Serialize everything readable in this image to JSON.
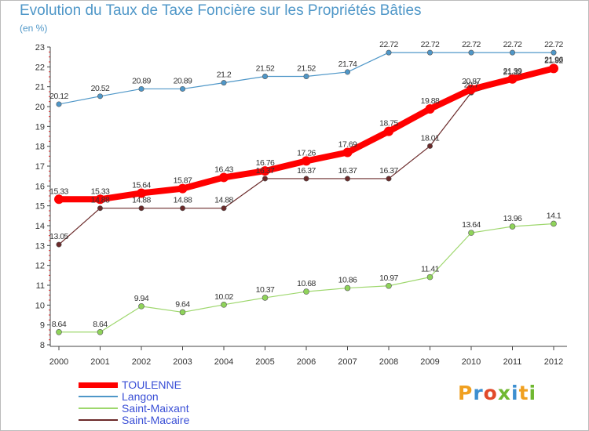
{
  "header": {
    "title": "Evolution du Taux de Taxe Foncière sur les Propriétés Bâties",
    "subtitle": "(en %)"
  },
  "logo": {
    "text": "Proxiti"
  },
  "chart_data": {
    "type": "line",
    "title": "Evolution du Taux de Taxe Foncière sur les Propriétés Bâties",
    "subtitle": "(en %)",
    "xlabel": "",
    "ylabel": "(en %)",
    "ylim": [
      8,
      23
    ],
    "grid": false,
    "legend": "bottom-left",
    "x": [
      "2000",
      "2001",
      "2002",
      "2003",
      "2004",
      "2005",
      "2006",
      "2007",
      "2008",
      "2009",
      "2010",
      "2011",
      "2012"
    ],
    "yticks": [
      "8",
      "9",
      "10",
      "11",
      "12",
      "13",
      "14",
      "15",
      "16",
      "17",
      "18",
      "19",
      "20",
      "21",
      "22",
      "23"
    ],
    "series": [
      {
        "name": "TOULENNE",
        "color": "#ff0000",
        "values": [
          15.33,
          15.33,
          15.64,
          15.87,
          16.43,
          16.76,
          17.26,
          17.69,
          18.75,
          19.88,
          20.87,
          21.39,
          21.92
        ],
        "labels": [
          "15.33",
          "15.33",
          "15.64",
          "15.87",
          "16.43",
          "16.76",
          "17.26",
          "17.69",
          "18.75",
          "19.88",
          "20.87",
          "21.39",
          "21.92"
        ]
      },
      {
        "name": "Langon",
        "color": "#4f97c8",
        "values": [
          20.12,
          20.52,
          20.89,
          20.89,
          21.2,
          21.52,
          21.52,
          21.74,
          22.72,
          22.72,
          22.72,
          22.72,
          22.72
        ],
        "labels": [
          "20.12",
          "20.52",
          "20.89",
          "20.89",
          "21.2",
          "21.52",
          "21.52",
          "21.74",
          "22.72",
          "22.72",
          "22.72",
          "22.72",
          "22.72"
        ]
      },
      {
        "name": "Saint-Maixant",
        "color": "#9ed76d",
        "values": [
          8.64,
          8.64,
          9.94,
          9.64,
          10.02,
          10.37,
          10.68,
          10.86,
          10.97,
          11.41,
          13.64,
          13.96,
          14.1
        ],
        "labels": [
          "8.64",
          "8.64",
          "9.94",
          "9.64",
          "10.02",
          "10.37",
          "10.68",
          "10.86",
          "10.97",
          "11.41",
          "13.64",
          "13.96",
          "14.1"
        ]
      },
      {
        "name": "Saint-Macaire",
        "color": "#6b2a2a",
        "values": [
          13.05,
          14.88,
          14.88,
          14.88,
          14.88,
          16.37,
          16.37,
          16.37,
          16.37,
          18.01,
          20.7,
          21.32,
          21.96
        ],
        "labels": [
          "13.05",
          "14.88",
          "14.88",
          "14.88",
          "14.88",
          "16.37",
          "16.37",
          "16.37",
          "16.37",
          "18.01",
          "20.7",
          "21.32",
          "21.96"
        ]
      }
    ]
  }
}
